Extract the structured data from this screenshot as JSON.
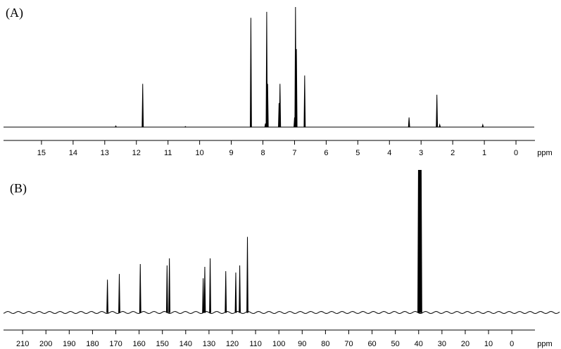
{
  "chart_data": [
    {
      "type": "spectrum",
      "title": "(A)",
      "xlabel": "ppm",
      "color": "#000000",
      "xlim": [
        16.2,
        -0.6
      ],
      "xticks": [
        15,
        14,
        13,
        12,
        11,
        10,
        9,
        8,
        7,
        6,
        5,
        4,
        3,
        2,
        1,
        0
      ],
      "ylim": [
        0,
        100
      ],
      "x": [
        12.65,
        11.8,
        10.45,
        8.38,
        7.92,
        7.88,
        7.85,
        7.49,
        7.46,
        7.0,
        6.97,
        6.94,
        6.68,
        3.38,
        2.5,
        2.41,
        1.05
      ],
      "values": [
        1,
        36,
        0.5,
        91,
        3,
        96,
        36,
        20,
        36,
        8,
        100,
        65,
        43,
        8,
        27,
        2,
        2
      ]
    },
    {
      "type": "spectrum",
      "title": "(B)",
      "xlabel": "ppm",
      "color": "#000000",
      "xlim": [
        218.2,
        -20.5
      ],
      "xticks": [
        210,
        200,
        190,
        180,
        170,
        160,
        150,
        140,
        130,
        120,
        110,
        100,
        90,
        80,
        70,
        60,
        50,
        40,
        30,
        20,
        10,
        0
      ],
      "ylim": [
        0,
        100
      ],
      "x": [
        173.6,
        168.5,
        159.5,
        148.0,
        147.0,
        132.5,
        131.8,
        129.5,
        122.8,
        118.5,
        116.8,
        113.5,
        40.1,
        39.9,
        39.7,
        39.5,
        39.3,
        39.1,
        38.9
      ],
      "values": [
        23,
        27,
        34,
        33,
        38,
        24,
        32,
        38,
        29,
        28,
        33,
        53,
        100,
        100,
        100,
        100,
        100,
        100,
        100
      ]
    }
  ]
}
